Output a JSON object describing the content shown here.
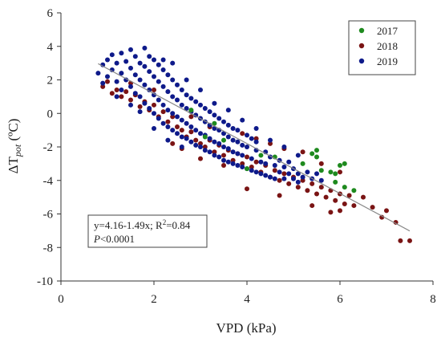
{
  "chart_data": {
    "type": "scatter",
    "xlabel": "VPD (kPa)",
    "ylabel": {
      "main": "ΔT",
      "sub": "pot",
      "unit": " (ºC)"
    },
    "xlim": [
      0,
      8
    ],
    "ylim": [
      -10,
      6
    ],
    "xticks": [
      0,
      2,
      4,
      6,
      8
    ],
    "yticks": [
      6,
      4,
      2,
      0,
      -2,
      -4,
      -6,
      -8,
      -10
    ],
    "grid": false,
    "legend": "top-right",
    "series": [
      {
        "name": "2017",
        "color": "#1e8a1e",
        "points": [
          [
            3.1,
            -1.4
          ],
          [
            3.5,
            -1.6
          ],
          [
            4.0,
            -3.3
          ],
          [
            4.3,
            -2.5
          ],
          [
            4.6,
            -2.6
          ],
          [
            5.2,
            -3.0
          ],
          [
            5.4,
            -2.4
          ],
          [
            5.5,
            -2.2
          ],
          [
            5.5,
            -2.6
          ],
          [
            5.6,
            -3.4
          ],
          [
            5.8,
            -3.5
          ],
          [
            5.9,
            -3.6
          ],
          [
            6.0,
            -3.1
          ],
          [
            6.1,
            -3.0
          ],
          [
            5.9,
            -4.1
          ],
          [
            6.1,
            -4.4
          ],
          [
            6.3,
            -4.6
          ],
          [
            2.8,
            0.2
          ],
          [
            3.3,
            -0.6
          ]
        ]
      },
      {
        "name": "2018",
        "color": "#7a1414",
        "points": [
          [
            0.9,
            1.6
          ],
          [
            1.0,
            1.9
          ],
          [
            1.1,
            1.2
          ],
          [
            1.2,
            1.4
          ],
          [
            1.3,
            1.0
          ],
          [
            1.4,
            1.3
          ],
          [
            1.5,
            0.8
          ],
          [
            1.6,
            1.1
          ],
          [
            1.7,
            0.4
          ],
          [
            1.8,
            0.7
          ],
          [
            1.9,
            0.2
          ],
          [
            2.0,
            0.5
          ],
          [
            2.1,
            -0.2
          ],
          [
            2.2,
            0.1
          ],
          [
            2.3,
            -0.5
          ],
          [
            2.4,
            -0.2
          ],
          [
            2.5,
            -0.8
          ],
          [
            2.6,
            -1.0
          ],
          [
            2.7,
            -1.4
          ],
          [
            2.8,
            -1.1
          ],
          [
            2.9,
            -1.6
          ],
          [
            3.0,
            -1.8
          ],
          [
            3.1,
            -2.0
          ],
          [
            3.2,
            -1.6
          ],
          [
            3.3,
            -2.3
          ],
          [
            3.4,
            -1.9
          ],
          [
            3.5,
            -2.5
          ],
          [
            3.6,
            -2.2
          ],
          [
            3.7,
            -2.8
          ],
          [
            3.8,
            -2.4
          ],
          [
            3.9,
            -3.0
          ],
          [
            4.0,
            -2.6
          ],
          [
            4.1,
            -3.2
          ],
          [
            4.2,
            -2.9
          ],
          [
            4.3,
            -3.5
          ],
          [
            4.4,
            -3.1
          ],
          [
            4.5,
            -3.8
          ],
          [
            4.6,
            -3.4
          ],
          [
            4.7,
            -4.0
          ],
          [
            4.8,
            -3.6
          ],
          [
            4.9,
            -4.2
          ],
          [
            5.0,
            -3.8
          ],
          [
            5.1,
            -4.4
          ],
          [
            5.2,
            -4.0
          ],
          [
            5.3,
            -4.6
          ],
          [
            5.4,
            -4.2
          ],
          [
            5.5,
            -4.8
          ],
          [
            5.6,
            -4.4
          ],
          [
            5.7,
            -5.0
          ],
          [
            5.8,
            -4.6
          ],
          [
            5.9,
            -5.2
          ],
          [
            6.0,
            -4.8
          ],
          [
            6.0,
            -5.8
          ],
          [
            6.1,
            -5.4
          ],
          [
            6.2,
            -4.9
          ],
          [
            6.3,
            -5.5
          ],
          [
            6.5,
            -5.0
          ],
          [
            6.7,
            -5.6
          ],
          [
            6.9,
            -6.2
          ],
          [
            7.0,
            -5.8
          ],
          [
            7.2,
            -6.5
          ],
          [
            7.3,
            -7.6
          ],
          [
            7.5,
            -7.6
          ],
          [
            2.4,
            -1.8
          ],
          [
            2.6,
            -2.1
          ],
          [
            3.0,
            -2.7
          ],
          [
            3.5,
            -3.1
          ],
          [
            3.9,
            -1.2
          ],
          [
            4.2,
            -1.5
          ],
          [
            4.5,
            -1.8
          ],
          [
            4.8,
            -2.1
          ],
          [
            5.2,
            -2.3
          ],
          [
            5.6,
            -3.0
          ],
          [
            6.0,
            -3.5
          ],
          [
            4.0,
            -4.5
          ],
          [
            4.7,
            -4.9
          ],
          [
            5.4,
            -5.5
          ],
          [
            5.8,
            -5.9
          ],
          [
            1.5,
            1.8
          ],
          [
            2.0,
            1.4
          ],
          [
            2.8,
            -0.2
          ],
          [
            3.2,
            -0.8
          ]
        ]
      },
      {
        "name": "2019",
        "color": "#0e1a8a",
        "points": [
          [
            0.8,
            2.4
          ],
          [
            0.9,
            2.9
          ],
          [
            1.0,
            2.2
          ],
          [
            1.0,
            3.2
          ],
          [
            1.1,
            2.6
          ],
          [
            1.1,
            3.5
          ],
          [
            1.2,
            1.9
          ],
          [
            1.2,
            3.0
          ],
          [
            1.3,
            2.4
          ],
          [
            1.3,
            3.6
          ],
          [
            1.4,
            2.0
          ],
          [
            1.4,
            3.1
          ],
          [
            1.5,
            1.6
          ],
          [
            1.5,
            2.7
          ],
          [
            1.5,
            3.8
          ],
          [
            1.6,
            1.2
          ],
          [
            1.6,
            2.3
          ],
          [
            1.6,
            3.4
          ],
          [
            1.7,
            1.0
          ],
          [
            1.7,
            2.0
          ],
          [
            1.7,
            3.0
          ],
          [
            1.8,
            0.6
          ],
          [
            1.8,
            1.7
          ],
          [
            1.8,
            2.8
          ],
          [
            1.8,
            3.9
          ],
          [
            1.9,
            0.3
          ],
          [
            1.9,
            1.4
          ],
          [
            1.9,
            2.5
          ],
          [
            2.0,
            0.0
          ],
          [
            2.0,
            1.1
          ],
          [
            2.0,
            2.2
          ],
          [
            2.0,
            3.2
          ],
          [
            2.1,
            -0.3
          ],
          [
            2.1,
            0.8
          ],
          [
            2.1,
            1.9
          ],
          [
            2.1,
            2.9
          ],
          [
            2.2,
            -0.6
          ],
          [
            2.2,
            0.5
          ],
          [
            2.2,
            1.6
          ],
          [
            2.2,
            2.6
          ],
          [
            2.3,
            -0.8
          ],
          [
            2.3,
            0.2
          ],
          [
            2.3,
            1.3
          ],
          [
            2.3,
            2.3
          ],
          [
            2.4,
            -1.0
          ],
          [
            2.4,
            0.0
          ],
          [
            2.4,
            1.0
          ],
          [
            2.4,
            2.0
          ],
          [
            2.5,
            -1.2
          ],
          [
            2.5,
            -0.2
          ],
          [
            2.5,
            0.8
          ],
          [
            2.5,
            1.7
          ],
          [
            2.6,
            -1.4
          ],
          [
            2.6,
            -0.4
          ],
          [
            2.6,
            0.5
          ],
          [
            2.6,
            1.4
          ],
          [
            2.7,
            -1.5
          ],
          [
            2.7,
            -0.6
          ],
          [
            2.7,
            0.3
          ],
          [
            2.7,
            1.1
          ],
          [
            2.8,
            -1.7
          ],
          [
            2.8,
            -0.8
          ],
          [
            2.8,
            0.1
          ],
          [
            2.8,
            0.9
          ],
          [
            2.9,
            -1.9
          ],
          [
            2.9,
            -1.0
          ],
          [
            2.9,
            -0.1
          ],
          [
            2.9,
            0.7
          ],
          [
            3.0,
            -2.0
          ],
          [
            3.0,
            -1.2
          ],
          [
            3.0,
            -0.3
          ],
          [
            3.0,
            0.5
          ],
          [
            3.1,
            -2.2
          ],
          [
            3.1,
            -1.3
          ],
          [
            3.1,
            -0.5
          ],
          [
            3.1,
            0.3
          ],
          [
            3.2,
            -2.3
          ],
          [
            3.2,
            -1.5
          ],
          [
            3.2,
            -0.7
          ],
          [
            3.2,
            0.1
          ],
          [
            3.3,
            -2.5
          ],
          [
            3.3,
            -1.7
          ],
          [
            3.3,
            -0.9
          ],
          [
            3.3,
            -0.1
          ],
          [
            3.4,
            -2.6
          ],
          [
            3.4,
            -1.8
          ],
          [
            3.4,
            -1.0
          ],
          [
            3.4,
            -0.3
          ],
          [
            3.5,
            -2.8
          ],
          [
            3.5,
            -2.0
          ],
          [
            3.5,
            -1.2
          ],
          [
            3.5,
            -0.5
          ],
          [
            3.6,
            -2.9
          ],
          [
            3.6,
            -2.1
          ],
          [
            3.6,
            -1.4
          ],
          [
            3.6,
            -0.7
          ],
          [
            3.7,
            -3.0
          ],
          [
            3.7,
            -2.3
          ],
          [
            3.7,
            -1.6
          ],
          [
            3.7,
            -0.9
          ],
          [
            3.8,
            -3.1
          ],
          [
            3.8,
            -2.4
          ],
          [
            3.8,
            -1.7
          ],
          [
            3.8,
            -1.0
          ],
          [
            3.9,
            -3.2
          ],
          [
            3.9,
            -2.5
          ],
          [
            3.9,
            -1.9
          ],
          [
            4.0,
            -3.3
          ],
          [
            4.0,
            -2.0
          ],
          [
            4.0,
            -1.3
          ],
          [
            4.1,
            -3.4
          ],
          [
            4.1,
            -2.7
          ],
          [
            4.1,
            -1.5
          ],
          [
            4.2,
            -3.5
          ],
          [
            4.2,
            -2.2
          ],
          [
            4.2,
            -1.7
          ],
          [
            4.3,
            -3.6
          ],
          [
            4.3,
            -2.9
          ],
          [
            4.4,
            -3.7
          ],
          [
            4.4,
            -3.0
          ],
          [
            4.4,
            -2.3
          ],
          [
            4.5,
            -3.8
          ],
          [
            4.5,
            -2.6
          ],
          [
            4.6,
            -3.9
          ],
          [
            4.6,
            -3.1
          ],
          [
            4.7,
            -3.5
          ],
          [
            4.7,
            -2.8
          ],
          [
            4.8,
            -3.9
          ],
          [
            4.8,
            -3.2
          ],
          [
            4.9,
            -3.6
          ],
          [
            4.9,
            -2.9
          ],
          [
            5.0,
            -3.9
          ],
          [
            5.0,
            -3.3
          ],
          [
            5.1,
            -3.6
          ],
          [
            5.1,
            -4.1
          ],
          [
            5.2,
            -3.8
          ],
          [
            5.3,
            -3.5
          ],
          [
            5.4,
            -3.9
          ],
          [
            5.5,
            -3.6
          ],
          [
            5.6,
            -4.0
          ],
          [
            0.9,
            1.8
          ],
          [
            1.3,
            1.4
          ],
          [
            1.7,
            0.1
          ],
          [
            2.0,
            -0.9
          ],
          [
            2.3,
            -1.6
          ],
          [
            2.6,
            -2.0
          ],
          [
            2.4,
            3.0
          ],
          [
            2.7,
            2.0
          ],
          [
            3.0,
            1.4
          ],
          [
            3.3,
            0.6
          ],
          [
            3.6,
            0.2
          ],
          [
            3.9,
            -0.4
          ],
          [
            4.2,
            -0.9
          ],
          [
            4.5,
            -1.6
          ],
          [
            4.8,
            -2.0
          ],
          [
            5.1,
            -2.5
          ],
          [
            1.5,
            0.5
          ],
          [
            1.9,
            3.4
          ],
          [
            2.2,
            3.2
          ],
          [
            1.2,
            1.0
          ]
        ]
      }
    ],
    "fit": {
      "intercept": 4.16,
      "slope": -1.49,
      "x_range": [
        0.8,
        7.5
      ],
      "color": "#888888"
    },
    "annotation": {
      "line1_a": "y=4.16-1.49x; R",
      "line1_sup": "2",
      "line1_b": "=0.84",
      "line2_italic": "P",
      "line2_rest": "<0.0001"
    }
  }
}
